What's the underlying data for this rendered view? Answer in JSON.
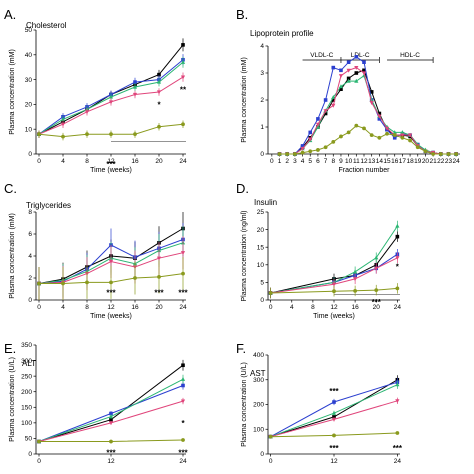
{
  "figure": {
    "panels": [
      {
        "letter": "A.",
        "title": "Cholesterol"
      },
      {
        "letter": "B.",
        "title": "Lipoprotein profile"
      },
      {
        "letter": "C.",
        "title": "Triglycerides"
      },
      {
        "letter": "D.",
        "title": "Insulin"
      },
      {
        "letter": "E.",
        "title": "ALT"
      },
      {
        "letter": "F.",
        "title": "AST"
      }
    ],
    "series_colors": [
      "#000000",
      "#2b3fcf",
      "#2bb673",
      "#e0457b",
      "#8a9a1e"
    ]
  },
  "chart_data": [
    {
      "type": "line",
      "title": "Cholesterol",
      "xlabel": "Time (weeks)",
      "ylabel": "Plasma concentration (mM)",
      "x": [
        0,
        4,
        8,
        12,
        16,
        20,
        24
      ],
      "xticks": [
        "0",
        "4",
        "8",
        "12",
        "16",
        "20",
        "24"
      ],
      "ylim": [
        0,
        50
      ],
      "yticks": [
        "0",
        "10",
        "20",
        "30",
        "40",
        "50"
      ],
      "series": [
        {
          "values": [
            8,
            13,
            18,
            24,
            28,
            32,
            44
          ]
        },
        {
          "values": [
            8,
            15,
            19,
            24,
            29,
            30,
            38
          ]
        },
        {
          "values": [
            8,
            14,
            18,
            23,
            27,
            29,
            37
          ]
        },
        {
          "values": [
            8,
            12,
            17,
            21,
            24,
            25,
            31
          ]
        },
        {
          "values": [
            8,
            7,
            8,
            8,
            8,
            11,
            12
          ]
        }
      ],
      "annotations": [
        {
          "text": "***",
          "x": 12,
          "y": -4
        },
        {
          "text": "*",
          "x": 20,
          "y": 20
        },
        {
          "text": "**",
          "x": 24,
          "y": 26
        }
      ],
      "reference_line": 5
    },
    {
      "type": "line",
      "title": "Lipoprotein profile",
      "xlabel": "Fraction number",
      "ylabel": "Plasma concentration (mM)",
      "x": [
        0,
        1,
        2,
        3,
        4,
        5,
        6,
        7,
        8,
        9,
        10,
        11,
        12,
        13,
        14,
        15,
        16,
        17,
        18,
        19,
        20,
        21,
        22,
        23,
        24
      ],
      "xticks": [
        "0",
        "1",
        "2",
        "3",
        "4",
        "5",
        "6",
        "7",
        "8",
        "9",
        "10",
        "11",
        "12",
        "13",
        "14",
        "15",
        "16",
        "17",
        "18",
        "19",
        "20",
        "21",
        "22",
        "23",
        "24"
      ],
      "ylim": [
        0,
        4
      ],
      "yticks": [
        "0",
        "1",
        "2",
        "3",
        "4"
      ],
      "regions": [
        {
          "label": "VLDL-C",
          "from": 4,
          "to": 9
        },
        {
          "label": "LDL-C",
          "from": 9,
          "to": 14
        },
        {
          "label": "HDL-C",
          "from": 15,
          "to": 21
        }
      ],
      "series": [
        {
          "x": [
            1,
            2,
            3,
            4,
            5,
            6,
            7,
            8,
            9,
            10,
            11,
            12,
            13,
            14,
            15,
            16,
            17,
            18,
            19,
            20,
            21,
            22,
            23,
            24
          ],
          "values": [
            0,
            0,
            0,
            0.25,
            0.6,
            1.0,
            1.5,
            2.0,
            2.4,
            2.8,
            3.0,
            3.1,
            2.3,
            1.5,
            0.9,
            0.7,
            0.7,
            0.65,
            0.3,
            0.1,
            0.05,
            0,
            0,
            0
          ]
        },
        {
          "x": [
            1,
            2,
            3,
            4,
            5,
            6,
            7,
            8,
            9,
            10,
            11,
            12,
            13,
            14,
            15,
            16,
            17,
            18,
            19,
            20,
            21,
            22,
            23,
            24
          ],
          "values": [
            0,
            0,
            0,
            0.3,
            0.8,
            1.3,
            2.0,
            3.2,
            3.1,
            3.4,
            3.6,
            3.4,
            2.0,
            1.3,
            0.9,
            0.6,
            0.75,
            0.7,
            0.35,
            0.1,
            0.05,
            0,
            0,
            0
          ]
        },
        {
          "x": [
            1,
            2,
            3,
            4,
            5,
            6,
            7,
            8,
            9,
            10,
            11,
            12,
            13,
            14,
            15,
            16,
            17,
            18,
            19,
            20,
            21,
            22,
            23,
            24
          ],
          "values": [
            0,
            0,
            0,
            0.2,
            0.5,
            1.0,
            1.6,
            2.1,
            2.5,
            2.7,
            2.7,
            2.9,
            2.0,
            1.4,
            1.0,
            0.8,
            0.8,
            0.7,
            0.35,
            0.15,
            0.05,
            0,
            0,
            0
          ]
        },
        {
          "x": [
            1,
            2,
            3,
            4,
            5,
            6,
            7,
            8,
            9,
            10,
            11,
            12,
            13,
            14,
            15,
            16,
            17,
            18,
            19,
            20,
            21,
            22,
            23,
            24
          ],
          "values": [
            0,
            0,
            0,
            0.2,
            0.55,
            1.1,
            1.6,
            1.8,
            2.9,
            3.1,
            3.2,
            3.0,
            1.9,
            1.4,
            0.95,
            0.7,
            0.7,
            0.7,
            0.3,
            0.1,
            0.05,
            0,
            0,
            0
          ]
        },
        {
          "x": [
            1,
            2,
            3,
            4,
            5,
            6,
            7,
            8,
            9,
            10,
            11,
            12,
            13,
            14,
            15,
            16,
            17,
            18,
            19,
            20,
            21,
            22,
            23,
            24
          ],
          "values": [
            0,
            0,
            0,
            0.05,
            0.1,
            0.15,
            0.25,
            0.45,
            0.65,
            0.8,
            1.05,
            0.95,
            0.7,
            0.6,
            0.75,
            0.7,
            0.6,
            0.5,
            0.25,
            0.1,
            0,
            0,
            0,
            0
          ]
        }
      ]
    },
    {
      "type": "line",
      "title": "Triglycerides",
      "xlabel": "Time (weeks)",
      "ylabel": "Plasma concentration (mM)",
      "x": [
        0,
        4,
        8,
        12,
        16,
        20,
        24
      ],
      "xticks": [
        "0",
        "4",
        "8",
        "12",
        "16",
        "20",
        "24"
      ],
      "ylim": [
        0,
        8
      ],
      "yticks": [
        "0",
        "2",
        "4",
        "6",
        "8"
      ],
      "series": [
        {
          "values": [
            1.5,
            1.9,
            3.0,
            4.0,
            3.8,
            5.2,
            6.5
          ]
        },
        {
          "values": [
            1.5,
            1.7,
            2.8,
            5.0,
            3.9,
            4.7,
            5.5
          ]
        },
        {
          "values": [
            1.5,
            1.8,
            2.6,
            3.8,
            3.3,
            4.5,
            5.2
          ]
        },
        {
          "values": [
            1.5,
            1.6,
            2.4,
            3.5,
            3.0,
            3.8,
            4.3
          ]
        },
        {
          "values": [
            1.5,
            1.5,
            1.6,
            1.6,
            2.0,
            2.1,
            2.4
          ]
        }
      ],
      "annotations": [
        {
          "text": "***",
          "x": 12,
          "y": 0.7
        },
        {
          "text": "***",
          "x": 20,
          "y": 0.7
        },
        {
          "text": "***",
          "x": 24,
          "y": 0.7
        }
      ]
    },
    {
      "type": "line",
      "title": "Insulin",
      "xlabel": "Time (weeks)",
      "ylabel": "Plasma concentration (ng/ml)",
      "x": [
        0,
        12,
        16,
        20,
        24
      ],
      "xticks": [
        "0",
        "4",
        "8",
        "12",
        "16",
        "20",
        "24"
      ],
      "xtick_values": [
        0,
        4,
        8,
        12,
        16,
        20,
        24
      ],
      "ylim": [
        0,
        25
      ],
      "yticks": [
        "0",
        "5",
        "10",
        "15",
        "20",
        "25"
      ],
      "series": [
        {
          "values": [
            2,
            6,
            7,
            10,
            18
          ]
        },
        {
          "values": [
            2,
            5,
            7,
            9,
            13
          ]
        },
        {
          "values": [
            2,
            5,
            8,
            12,
            21
          ]
        },
        {
          "values": [
            2,
            4.5,
            6,
            9,
            12
          ]
        },
        {
          "values": [
            2,
            2.5,
            2.6,
            2.8,
            3.3
          ]
        }
      ],
      "annotations": [
        {
          "text": "***",
          "x": 20,
          "y": -0.5
        },
        {
          "text": "*",
          "x": 24,
          "y": 9.5
        }
      ],
      "reference_line": 1.5
    },
    {
      "type": "line",
      "title": "ALT",
      "xlabel": "",
      "ylabel": "Plasma concentration (U/L)",
      "x": [
        0,
        12,
        24
      ],
      "xticks": [
        "0",
        "12",
        "24"
      ],
      "ylim": [
        0,
        350
      ],
      "yticks": [
        "0",
        "50",
        "100",
        "150",
        "200",
        "250",
        "300",
        "350"
      ],
      "series": [
        {
          "values": [
            40,
            110,
            285
          ]
        },
        {
          "values": [
            40,
            130,
            220
          ]
        },
        {
          "values": [
            40,
            120,
            240
          ]
        },
        {
          "values": [
            40,
            100,
            170
          ]
        },
        {
          "values": [
            40,
            40,
            45
          ]
        }
      ],
      "annotations": [
        {
          "text": "*",
          "x": 24,
          "y": 100
        },
        {
          "text": "***",
          "x": 12,
          "y": 5
        },
        {
          "text": "***",
          "x": 24,
          "y": 5
        }
      ]
    },
    {
      "type": "line",
      "title": "AST",
      "xlabel": "",
      "ylabel": "Plasma concentration (U/L)",
      "x": [
        0,
        12,
        24
      ],
      "xticks": [
        "0",
        "12",
        "24"
      ],
      "ylim": [
        0,
        400
      ],
      "yticks": [
        "0",
        "100",
        "200",
        "300",
        "400"
      ],
      "series": [
        {
          "values": [
            70,
            150,
            300
          ]
        },
        {
          "values": [
            70,
            210,
            290
          ]
        },
        {
          "values": [
            70,
            165,
            280
          ]
        },
        {
          "values": [
            70,
            140,
            215
          ]
        },
        {
          "values": [
            70,
            75,
            85
          ]
        }
      ],
      "annotations": [
        {
          "text": "***",
          "x": 12,
          "y": 255
        },
        {
          "text": "***",
          "x": 12,
          "y": 25
        },
        {
          "text": "***",
          "x": 24,
          "y": 25
        }
      ]
    }
  ]
}
